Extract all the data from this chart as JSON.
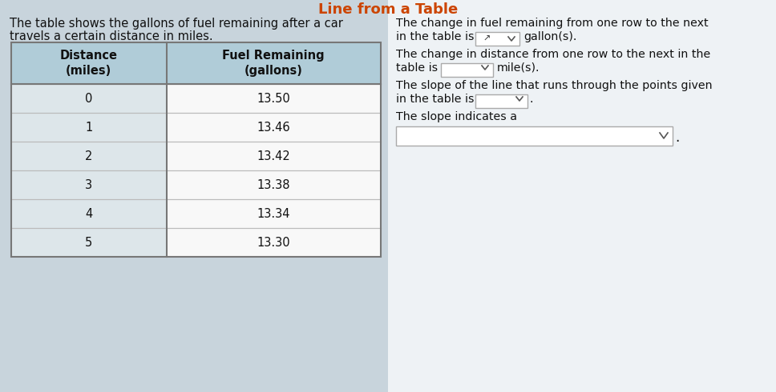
{
  "title_color": "#cc4400",
  "bg_color": "#c8d4dc",
  "right_bg": "#f0f0f0",
  "intro_text_line1": "The table shows the gallons of fuel remaining after a car",
  "intro_text_line2": "travels a certain distance in miles.",
  "col_headers": [
    "Distance\n(miles)",
    "Fuel Remaining\n(gallons)"
  ],
  "header_bg": "#b0ccd8",
  "distances": [
    "0",
    "1",
    "2",
    "3",
    "4",
    "5"
  ],
  "fuel": [
    "13.50",
    "13.46",
    "13.42",
    "13.38",
    "13.34",
    "13.30"
  ],
  "row_bg_left": "#dde6ea",
  "row_bg_right": "#f8f8f8",
  "right_text_1a": "The change in fuel remaining from one row to the next",
  "right_text_1b": "in the table is",
  "right_text_1c": "gallon(s).",
  "right_text_2a": "The change in distance from one row to the next in the",
  "right_text_2b": "table is",
  "right_text_2c": "mile(s).",
  "right_text_3a": "The slope of the line that runs through the points given",
  "right_text_3b": "in the table is",
  "right_text_3c": ".",
  "right_text_4": "The slope indicates a",
  "dropdown_color": "#ffffff",
  "dropdown_border": "#aaaaaa",
  "table_border": "#888888",
  "cell_border": "#bbbbbb",
  "text_color": "#111111",
  "font_size": 10.5
}
